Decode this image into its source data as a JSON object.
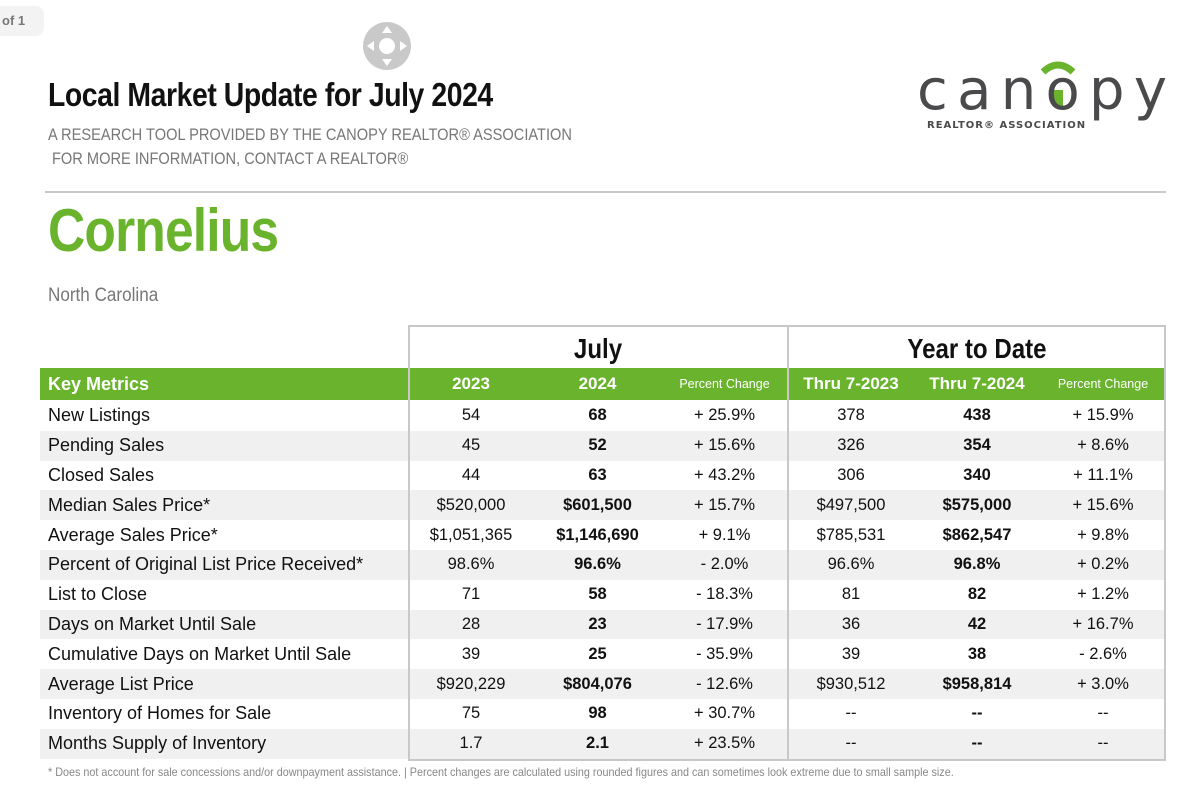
{
  "viewer": {
    "page_indicator": "of 1"
  },
  "header": {
    "title": "Local Market Update for July 2024",
    "subtitle_line1": "A RESEARCH TOOL PROVIDED BY THE CANOPY REALTOR® ASSOCIATION",
    "subtitle_line2": "FOR MORE INFORMATION, CONTACT A REALTOR®",
    "logo_text": "canopy",
    "logo_tagline": "REALTOR® ASSOCIATION"
  },
  "location": {
    "city": "Cornelius",
    "state": "North Carolina"
  },
  "colors": {
    "accent": "#6ab42d",
    "logo_gray": "#4a4a4c",
    "row_alt": "#f0f0f0"
  },
  "table": {
    "group_july": "July",
    "group_ytd": "Year to Date",
    "columns": [
      "Key Metrics",
      "2023",
      "2024",
      "Percent Change",
      "Thru 7-2023",
      "Thru 7-2024",
      "Percent Change"
    ],
    "rows": [
      [
        "New Listings",
        "54",
        "68",
        "+ 25.9%",
        "378",
        "438",
        "+ 15.9%"
      ],
      [
        "Pending Sales",
        "45",
        "52",
        "+ 15.6%",
        "326",
        "354",
        "+ 8.6%"
      ],
      [
        "Closed Sales",
        "44",
        "63",
        "+ 43.2%",
        "306",
        "340",
        "+ 11.1%"
      ],
      [
        "Median Sales Price*",
        "$520,000",
        "$601,500",
        "+ 15.7%",
        "$497,500",
        "$575,000",
        "+ 15.6%"
      ],
      [
        "Average Sales Price*",
        "$1,051,365",
        "$1,146,690",
        "+ 9.1%",
        "$785,531",
        "$862,547",
        "+ 9.8%"
      ],
      [
        "Percent of Original List Price Received*",
        "98.6%",
        "96.6%",
        "- 2.0%",
        "96.6%",
        "96.8%",
        "+ 0.2%"
      ],
      [
        "List to Close",
        "71",
        "58",
        "- 18.3%",
        "81",
        "82",
        "+ 1.2%"
      ],
      [
        "Days on Market Until Sale",
        "28",
        "23",
        "- 17.9%",
        "36",
        "42",
        "+ 16.7%"
      ],
      [
        "Cumulative Days on Market Until Sale",
        "39",
        "25",
        "- 35.9%",
        "39",
        "38",
        "- 2.6%"
      ],
      [
        "Average List Price",
        "$920,229",
        "$804,076",
        "- 12.6%",
        "$930,512",
        "$958,814",
        "+ 3.0%"
      ],
      [
        "Inventory of Homes for Sale",
        "75",
        "98",
        "+ 30.7%",
        "--",
        "--",
        "--"
      ],
      [
        "Months Supply of Inventory",
        "1.7",
        "2.1",
        "+ 23.5%",
        "--",
        "--",
        "--"
      ]
    ]
  },
  "footnote": "* Does not account for sale concessions and/or downpayment assistance.  |  Percent changes are calculated using rounded figures and can sometimes look extreme due to small sample size."
}
